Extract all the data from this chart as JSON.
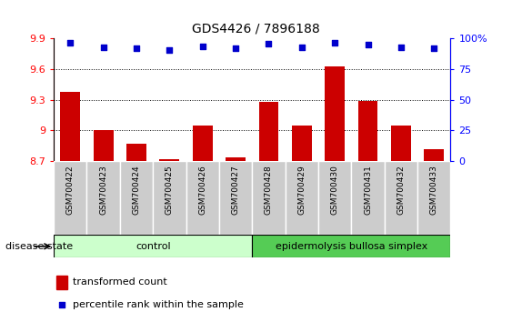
{
  "title": "GDS4426 / 7896188",
  "samples": [
    "GSM700422",
    "GSM700423",
    "GSM700424",
    "GSM700425",
    "GSM700426",
    "GSM700427",
    "GSM700428",
    "GSM700429",
    "GSM700430",
    "GSM700431",
    "GSM700432",
    "GSM700433"
  ],
  "bar_values": [
    9.38,
    9.0,
    8.87,
    8.72,
    9.05,
    8.74,
    9.28,
    9.05,
    9.63,
    9.29,
    9.05,
    8.82
  ],
  "dot_values_pct": [
    97,
    93,
    92,
    91,
    94,
    92,
    96,
    93,
    97,
    95,
    93,
    92
  ],
  "bar_bottom": 8.7,
  "ylim_left": [
    8.7,
    9.9
  ],
  "ylim_right": [
    0,
    100
  ],
  "yticks_left": [
    8.7,
    9.0,
    9.3,
    9.6,
    9.9
  ],
  "yticks_right": [
    0,
    25,
    50,
    75,
    100
  ],
  "ytick_labels_left": [
    "8.7",
    "9",
    "9.3",
    "9.6",
    "9.9"
  ],
  "ytick_labels_right": [
    "0",
    "25",
    "50",
    "75",
    "100%"
  ],
  "bar_color": "#cc0000",
  "dot_color": "#0000cc",
  "control_samples": 6,
  "control_label": "control",
  "disease_label": "epidermolysis bullosa simplex",
  "disease_state_label": "disease state",
  "control_bg": "#ccffcc",
  "disease_bg": "#55cc55",
  "xtick_bg": "#cccccc",
  "legend_bar_label": "transformed count",
  "legend_dot_label": "percentile rank within the sample",
  "grid_lines": [
    9.0,
    9.3,
    9.6
  ],
  "figsize": [
    5.63,
    3.54
  ],
  "dpi": 100
}
